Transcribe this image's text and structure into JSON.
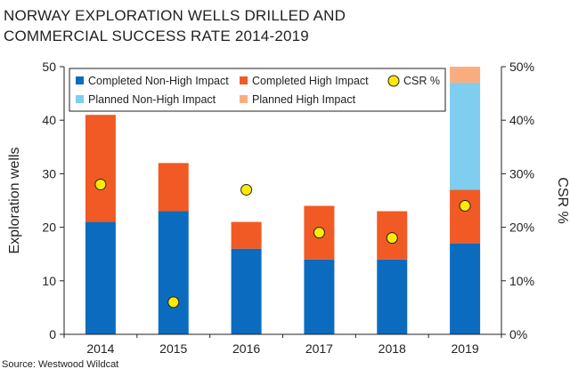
{
  "title_lines": [
    "NORWAY EXPLORATION WELLS DRILLED AND",
    "COMMERCIAL SUCCESS RATE 2014-2019"
  ],
  "source": "Source: Westwood Wildcat",
  "chart_data": {
    "type": "bar",
    "stacked": true,
    "title": "NORWAY EXPLORATION WELLS DRILLED AND COMMERCIAL SUCCESS RATE 2014-2019",
    "categories": [
      "2014",
      "2015",
      "2016",
      "2017",
      "2018",
      "2019"
    ],
    "ylabel": "Exploration wells",
    "ylim": [
      0,
      50
    ],
    "yticks": [
      0,
      10,
      20,
      30,
      40,
      50
    ],
    "y2label": "CSR %",
    "y2lim": [
      0,
      50
    ],
    "y2ticks": [
      "0%",
      "10%",
      "20%",
      "30%",
      "40%",
      "50%"
    ],
    "legend_position": "top",
    "series": [
      {
        "name": "Completed Non-High Impact",
        "color": "#0b6cbf",
        "values": [
          21,
          23,
          16,
          14,
          14,
          17
        ]
      },
      {
        "name": "Completed High Impact",
        "color": "#f15a24",
        "values": [
          20,
          9,
          5,
          10,
          9,
          10
        ]
      },
      {
        "name": "Planned Non-High Impact",
        "color": "#7fcdef",
        "values": [
          0,
          0,
          0,
          0,
          0,
          20
        ]
      },
      {
        "name": "Planned High Impact",
        "color": "#f9ad7f",
        "values": [
          0,
          0,
          0,
          0,
          0,
          3
        ]
      }
    ],
    "csr": {
      "name": "CSR %",
      "color": "#ffea00",
      "values": [
        28,
        6,
        27,
        19,
        18,
        24
      ]
    }
  }
}
